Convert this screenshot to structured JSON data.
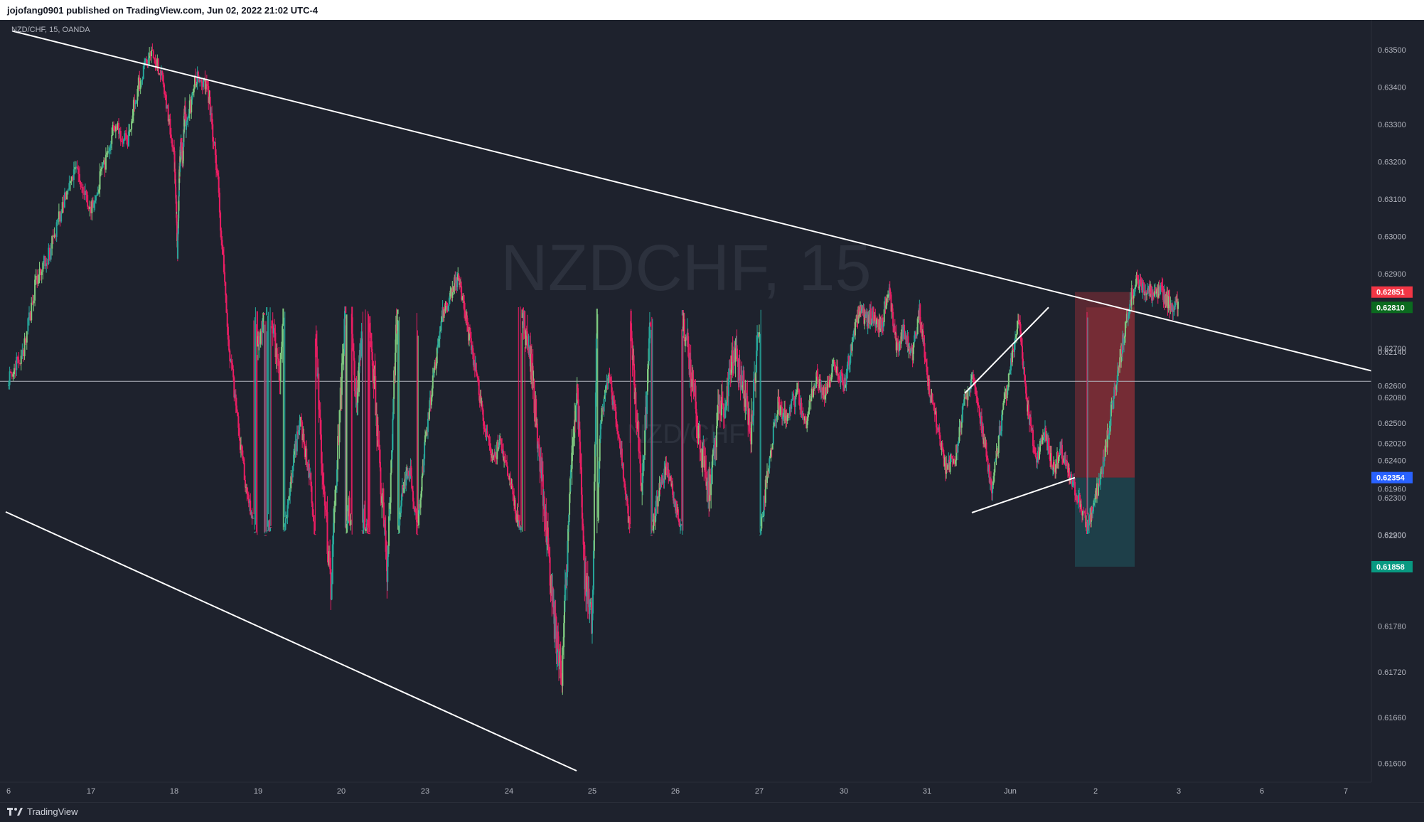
{
  "header": {
    "published_text": "jojofang0901 published on TradingView.com, Jun 02, 2022 21:02 UTC-4"
  },
  "symbol_label": "NZD/CHF, 15, OANDA",
  "watermark": {
    "main": "NZDCHF, 15",
    "sub": "NZD/CHF"
  },
  "footer": {
    "brand": "TradingView"
  },
  "colors": {
    "background": "#1e222d",
    "up_candle": "#26a69a",
    "up_candle_alt": "#7fc97f",
    "down_candle": "#e91e63",
    "trendline": "#ffffff",
    "stop_zone": "#e0393e",
    "target_zone": "#1f6a6f",
    "price_tag_red": "#f23645",
    "price_tag_green": "#0b6b1f",
    "price_tag_blue": "#2962ff",
    "price_tag_teal": "#089981"
  },
  "chart_data": {
    "type": "candlestick",
    "symbol": "NZD/CHF",
    "interval": "15",
    "source": "OANDA",
    "x_tick_labels": [
      "6",
      "17",
      "18",
      "19",
      "20",
      "23",
      "24",
      "25",
      "26",
      "27",
      "30",
      "31",
      "Jun",
      "2",
      "3",
      "6",
      "7"
    ],
    "y_tick_labels": [
      "0.63500",
      "0.63400",
      "0.63300",
      "0.63200",
      "0.63100",
      "0.63000",
      "0.62900",
      "0.62700",
      "0.62600",
      "0.62500",
      "0.62400",
      "0.62300",
      "0.62200",
      "0.62140",
      "0.62080",
      "0.62020",
      "0.61960",
      "0.61900",
      "0.61780",
      "0.61720",
      "0.61660",
      "0.61600"
    ],
    "price_tags": [
      {
        "value": "0.62851",
        "kind": "stop"
      },
      {
        "value": "0.62810",
        "kind": "last"
      },
      {
        "value": "0.62354",
        "kind": "entry"
      },
      {
        "value": "0.61858",
        "kind": "target"
      }
    ],
    "horizontal_line": 0.62612,
    "price_path": [
      {
        "session": "6",
        "points": [
          0.6262,
          0.6268,
          0.6288,
          0.6296,
          0.6309,
          0.6318,
          0.6307
        ]
      },
      {
        "session": "17",
        "points": [
          0.6307,
          0.6318,
          0.633,
          0.6325,
          0.6341,
          0.6349,
          0.6343,
          0.6322
        ]
      },
      {
        "session": "18",
        "points": [
          0.6322,
          0.6311,
          0.6296,
          0.6317,
          0.6326,
          0.632,
          0.6334,
          0.633
        ]
      },
      {
        "session": "18b",
        "points": [
          0.633,
          0.6343,
          0.6341,
          0.6318,
          0.6275,
          0.625,
          0.623,
          0.6215
        ]
      },
      {
        "session": "19",
        "points": [
          0.6215,
          0.6222,
          0.621,
          0.6232,
          0.6251,
          0.6235,
          0.6202,
          0.6183,
          0.621
        ]
      },
      {
        "session": "20",
        "points": [
          0.621,
          0.6228,
          0.6205,
          0.6225,
          0.6215,
          0.62,
          0.6185,
          0.6212,
          0.6233,
          0.6238,
          0.622,
          0.6245
        ]
      },
      {
        "session": "23",
        "points": [
          0.6245,
          0.6262,
          0.6279,
          0.6284,
          0.629,
          0.6276,
          0.6265,
          0.625,
          0.624,
          0.6245,
          0.6236
        ]
      },
      {
        "session": "24",
        "points": [
          0.6236,
          0.6225,
          0.6218,
          0.6212,
          0.62,
          0.619,
          0.6178,
          0.6172,
          0.6195,
          0.621,
          0.6185,
          0.6178
        ]
      },
      {
        "session": "25",
        "points": [
          0.6178,
          0.625,
          0.6262,
          0.625,
          0.6232,
          0.621,
          0.6196,
          0.6218,
          0.6232,
          0.6238,
          0.6228
        ]
      },
      {
        "session": "26",
        "points": [
          0.6228,
          0.6218,
          0.621,
          0.6202,
          0.6195,
          0.6205,
          0.6208,
          0.6214,
          0.621,
          0.6204,
          0.6218
        ]
      },
      {
        "session": "27",
        "points": [
          0.6218,
          0.624,
          0.6255,
          0.6251,
          0.6258,
          0.625,
          0.6262,
          0.6258,
          0.6266,
          0.626
        ]
      },
      {
        "session": "30",
        "points": [
          0.626,
          0.627,
          0.628,
          0.6278,
          0.6279,
          0.6276,
          0.6285,
          0.627,
          0.6275,
          0.6268,
          0.628,
          0.6262
        ]
      },
      {
        "session": "31",
        "points": [
          0.6262,
          0.625,
          0.6238,
          0.624,
          0.6255,
          0.6262,
          0.6248,
          0.6232,
          0.625,
          0.6265
        ]
      },
      {
        "session": "Jun",
        "points": [
          0.6265,
          0.6278,
          0.6255,
          0.624,
          0.6248,
          0.6238,
          0.6242,
          0.6235,
          0.623,
          0.6222,
          0.623
        ]
      },
      {
        "session": "2",
        "points": [
          0.623,
          0.624,
          0.6255,
          0.6268,
          0.6282,
          0.6288,
          0.6286,
          0.6284,
          0.6285,
          0.6282,
          0.6281
        ]
      }
    ],
    "annotations": [
      {
        "kind": "trendline",
        "label": "upper descending line",
        "from": [
          "6",
          0.6355
        ],
        "to": [
          "7",
          0.6264
        ]
      },
      {
        "kind": "trendline",
        "label": "lower descending line",
        "from": [
          "6",
          0.6193
        ],
        "to": [
          "25",
          0.6159
        ]
      },
      {
        "kind": "trendline",
        "label": "wedge upper",
        "from": [
          "31",
          0.6258
        ],
        "to": [
          "Jun",
          0.6281
        ]
      },
      {
        "kind": "trendline",
        "label": "wedge lower",
        "from": [
          "31",
          0.6226
        ],
        "to": [
          "2",
          0.62354
        ]
      },
      {
        "kind": "position",
        "entry": 0.62354,
        "stop": 0.62851,
        "target": 0.61858
      }
    ]
  }
}
